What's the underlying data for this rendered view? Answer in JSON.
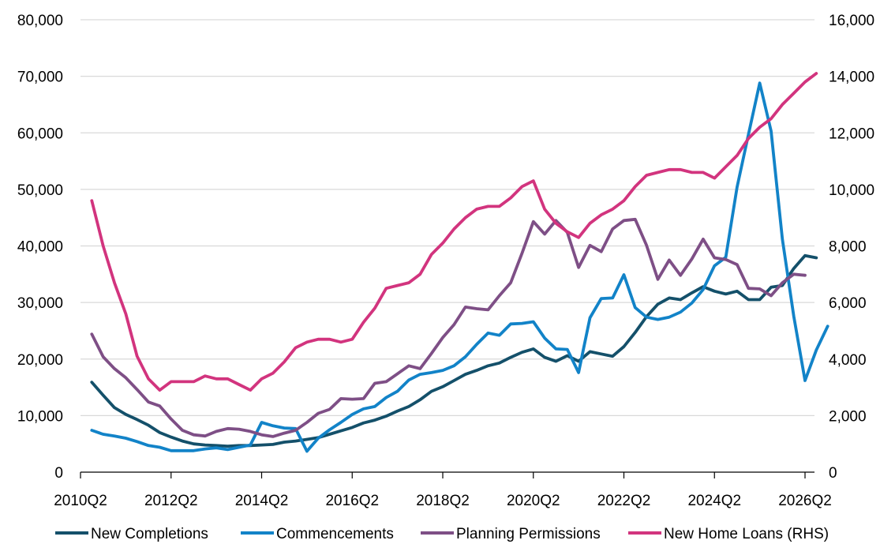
{
  "chart_data": {
    "type": "line",
    "grid": "horizontal",
    "legend_position": "bottom",
    "y_left": {
      "ylim": [
        0,
        80000
      ],
      "tick_labels": [
        "0",
        "10,000",
        "20,000",
        "30,000",
        "40,000",
        "50,000",
        "60,000",
        "70,000",
        "80,000"
      ],
      "tick_values": [
        0,
        10000,
        20000,
        30000,
        40000,
        50000,
        60000,
        70000,
        80000
      ]
    },
    "y_right": {
      "ylim": [
        0,
        16000
      ],
      "tick_labels": [
        "0",
        "2,000",
        "4,000",
        "6,000",
        "8,000",
        "10,000",
        "12,000",
        "14,000",
        "16,000"
      ],
      "tick_values": [
        0,
        2000,
        4000,
        6000,
        8000,
        10000,
        12000,
        14000,
        16000
      ]
    },
    "x_axis": {
      "first_quarter": "2010Q2",
      "tick_labels": [
        "2010Q2",
        "2012Q2",
        "2014Q2",
        "2016Q2",
        "2018Q2",
        "2020Q2",
        "2022Q2",
        "2024Q2",
        "2026Q2"
      ]
    },
    "series": [
      {
        "name": "New Completions",
        "axis": "left",
        "color": "#14506A",
        "start": "2010Q3",
        "values": [
          15900,
          13600,
          11400,
          10200,
          9300,
          8300,
          7000,
          6200,
          5500,
          5000,
          4800,
          4700,
          4600,
          4700,
          4700,
          4800,
          4900,
          5300,
          5500,
          5800,
          6100,
          6700,
          7300,
          7900,
          8700,
          9200,
          9900,
          10800,
          11600,
          12800,
          14300,
          15100,
          16200,
          17300,
          18000,
          18800,
          19300,
          20300,
          21200,
          21800,
          20300,
          19600,
          20600,
          19600,
          21300,
          20900,
          20500,
          22200,
          24700,
          27500,
          29700,
          30800,
          30500,
          31700,
          32800,
          32000,
          31500,
          32000,
          30500,
          30500,
          32700,
          33000,
          36000,
          38300,
          37900
        ]
      },
      {
        "name": "Commencements",
        "axis": "left",
        "color": "#1283C8",
        "start": "2010Q3",
        "values": [
          7400,
          6700,
          6400,
          6000,
          5400,
          4700,
          4400,
          3800,
          3800,
          3800,
          4100,
          4300,
          4000,
          4400,
          4800,
          8800,
          8200,
          7800,
          7700,
          3700,
          6000,
          7500,
          8800,
          10200,
          11200,
          11600,
          13200,
          14300,
          16300,
          17300,
          17600,
          18000,
          18800,
          20400,
          22600,
          24600,
          24200,
          26200,
          26300,
          26600,
          23700,
          21800,
          21700,
          17600,
          27300,
          30700,
          30800,
          34900,
          29100,
          27400,
          27000,
          27400,
          28300,
          29900,
          32300,
          36500,
          38000,
          50400,
          59700,
          68800,
          60300,
          41200,
          27600,
          16200,
          21600,
          25800
        ]
      },
      {
        "name": "Planning Permissions",
        "axis": "left",
        "color": "#7E4F86",
        "start": "2010Q3",
        "values": [
          24400,
          20400,
          18300,
          16700,
          14600,
          12400,
          11700,
          9400,
          7400,
          6600,
          6400,
          7200,
          7700,
          7600,
          7200,
          6600,
          6300,
          6900,
          7400,
          8800,
          10400,
          11100,
          13000,
          12900,
          13000,
          15700,
          16000,
          17400,
          18800,
          18300,
          21000,
          23800,
          26100,
          29200,
          28900,
          28700,
          31200,
          33500,
          38700,
          44300,
          42100,
          44500,
          42400,
          36200,
          40100,
          39000,
          43000,
          44500,
          44700,
          40100,
          34100,
          37500,
          34800,
          37700,
          41200,
          37900,
          37600,
          36700,
          32500,
          32400,
          31200,
          33500,
          35000,
          34800
        ]
      },
      {
        "name": "New Home Loans (RHS)",
        "axis": "right",
        "color": "#D2347E",
        "start": "2010Q3",
        "values": [
          9600,
          8000,
          6700,
          5600,
          4100,
          3300,
          2900,
          3200,
          3200,
          3200,
          3400,
          3300,
          3300,
          3100,
          2900,
          3300,
          3500,
          3900,
          4400,
          4600,
          4700,
          4700,
          4600,
          4700,
          5300,
          5800,
          6500,
          6600,
          6700,
          7000,
          7700,
          8100,
          8600,
          9000,
          9300,
          9400,
          9400,
          9700,
          10100,
          10300,
          9300,
          8800,
          8500,
          8300,
          8800,
          9100,
          9300,
          9600,
          10100,
          10500,
          10600,
          10700,
          10700,
          10600,
          10600,
          10400,
          10800,
          11200,
          11800,
          12200,
          12500,
          13000,
          13400,
          13800,
          14100
        ]
      }
    ]
  }
}
